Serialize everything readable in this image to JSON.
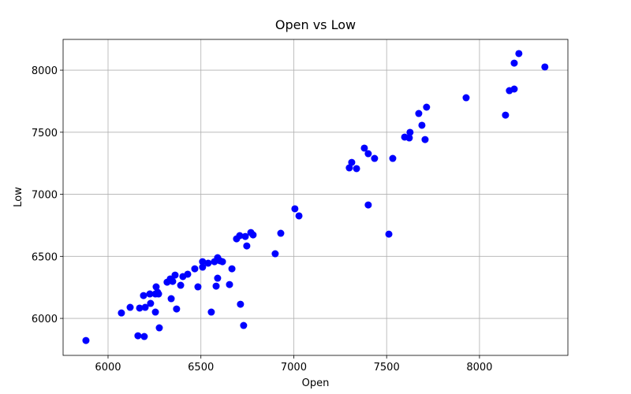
{
  "chart_data": {
    "type": "scatter",
    "title": "Open vs Low",
    "x_label": "Open",
    "y_label": "Low",
    "x": [
      5881,
      6072,
      6119,
      6161,
      6170,
      6191,
      6195,
      6200,
      6225,
      6229,
      6255,
      6255,
      6259,
      6267,
      6272,
      6276,
      6318,
      6335,
      6340,
      6348,
      6361,
      6369,
      6391,
      6403,
      6429,
      6467,
      6484,
      6509,
      6509,
      6539,
      6556,
      6573,
      6582,
      6590,
      6590,
      6603,
      6616,
      6654,
      6667,
      6692,
      6709,
      6713,
      6730,
      6739,
      6747,
      6769,
      6781,
      6900,
      6930,
      7006,
      7028,
      7299,
      7312,
      7338,
      7380,
      7401,
      7401,
      7435,
      7512,
      7533,
      7597,
      7622,
      7626,
      7673,
      7690,
      7707,
      7715,
      7928,
      8140,
      8161,
      8187,
      8187,
      8212,
      8352
    ],
    "values": [
      5822,
      6044,
      6089,
      5860,
      6083,
      6184,
      5854,
      6089,
      6197,
      6121,
      6051,
      6197,
      6254,
      6210,
      6197,
      5924,
      6292,
      6318,
      6159,
      6298,
      6349,
      6076,
      6267,
      6337,
      6356,
      6400,
      6254,
      6457,
      6413,
      6445,
      6051,
      6457,
      6260,
      6489,
      6324,
      6464,
      6457,
      6273,
      6400,
      6641,
      6667,
      6114,
      5943,
      6660,
      6584,
      6692,
      6673,
      6521,
      6686,
      6883,
      6826,
      7213,
      7257,
      7207,
      7372,
      7327,
      6914,
      7289,
      6679,
      7289,
      7461,
      7454,
      7499,
      7651,
      7556,
      7441,
      7702,
      7778,
      7638,
      7835,
      7848,
      8057,
      8134,
      8026
    ],
    "color": "#0000ff",
    "xlim": [
      5758,
      8476
    ],
    "ylim": [
      5702,
      8248
    ],
    "xticks": [
      6000,
      6500,
      7000,
      7500,
      8000
    ],
    "yticks": [
      6000,
      6500,
      7000,
      7500,
      8000
    ],
    "grid": true
  }
}
